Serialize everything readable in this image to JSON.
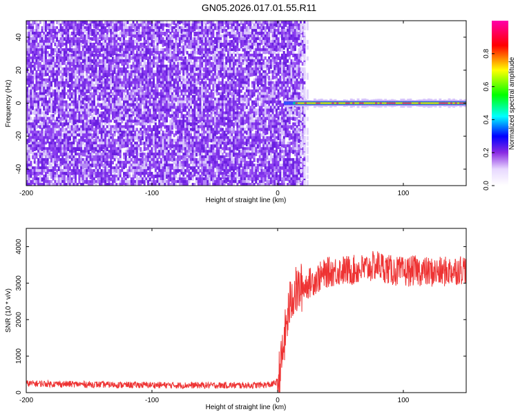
{
  "title": "GN05.2026.017.01.55.R11",
  "chart_data": [
    {
      "type": "heatmap",
      "xlabel": "Height of straight line (km)",
      "ylabel": "Frequency (Hz)",
      "xlim": [
        -200,
        150
      ],
      "ylim": [
        -50,
        50
      ],
      "x_ticks": [
        "-200",
        "-100",
        "0",
        "100"
      ],
      "y_ticks": [
        "-40",
        "-20",
        "0",
        "20",
        "40"
      ],
      "noise_region_x": [
        -200,
        22
      ],
      "signal_band": {
        "x_start": 5,
        "x_end": 150,
        "freq_center": 0,
        "freq_halfwidth": 2
      },
      "colorbar": {
        "label": "Normalized spectral amplitude",
        "range": [
          0,
          1
        ],
        "ticks": [
          "0.0",
          "0.2",
          "0.4",
          "0.6",
          "0.8"
        ],
        "colormap": [
          "#ffffff",
          "#e8d8ff",
          "#8a2be2",
          "#0000ff",
          "#00ffff",
          "#00ff00",
          "#ffff00",
          "#ff0000",
          "#ff00aa"
        ]
      }
    },
    {
      "type": "line",
      "xlabel": "Height of straight line (km)",
      "ylabel": "SNR (10 * v/v)",
      "xlim": [
        -200,
        150
      ],
      "ylim": [
        0,
        4500
      ],
      "x_ticks": [
        "-200",
        "-100",
        "0",
        "100"
      ],
      "y_ticks": [
        "0",
        "1000",
        "2000",
        "3000",
        "4000"
      ],
      "color": "#ee3333",
      "series": [
        {
          "x": [
            -200,
            -180,
            -160,
            -140,
            -120,
            -100,
            -80,
            -60,
            -40,
            -20,
            -5,
            0,
            3,
            6,
            9,
            12,
            16,
            20,
            25,
            30,
            40,
            50,
            60,
            70,
            80,
            90,
            100,
            110,
            120,
            130,
            140,
            150
          ],
          "y": [
            250,
            240,
            230,
            220,
            210,
            210,
            200,
            200,
            200,
            200,
            220,
            300,
            800,
            1600,
            2300,
            2700,
            2800,
            2900,
            3000,
            3100,
            3300,
            3350,
            3350,
            3400,
            3500,
            3350,
            3300,
            3350,
            3300,
            3300,
            3350,
            3400
          ]
        }
      ]
    }
  ]
}
